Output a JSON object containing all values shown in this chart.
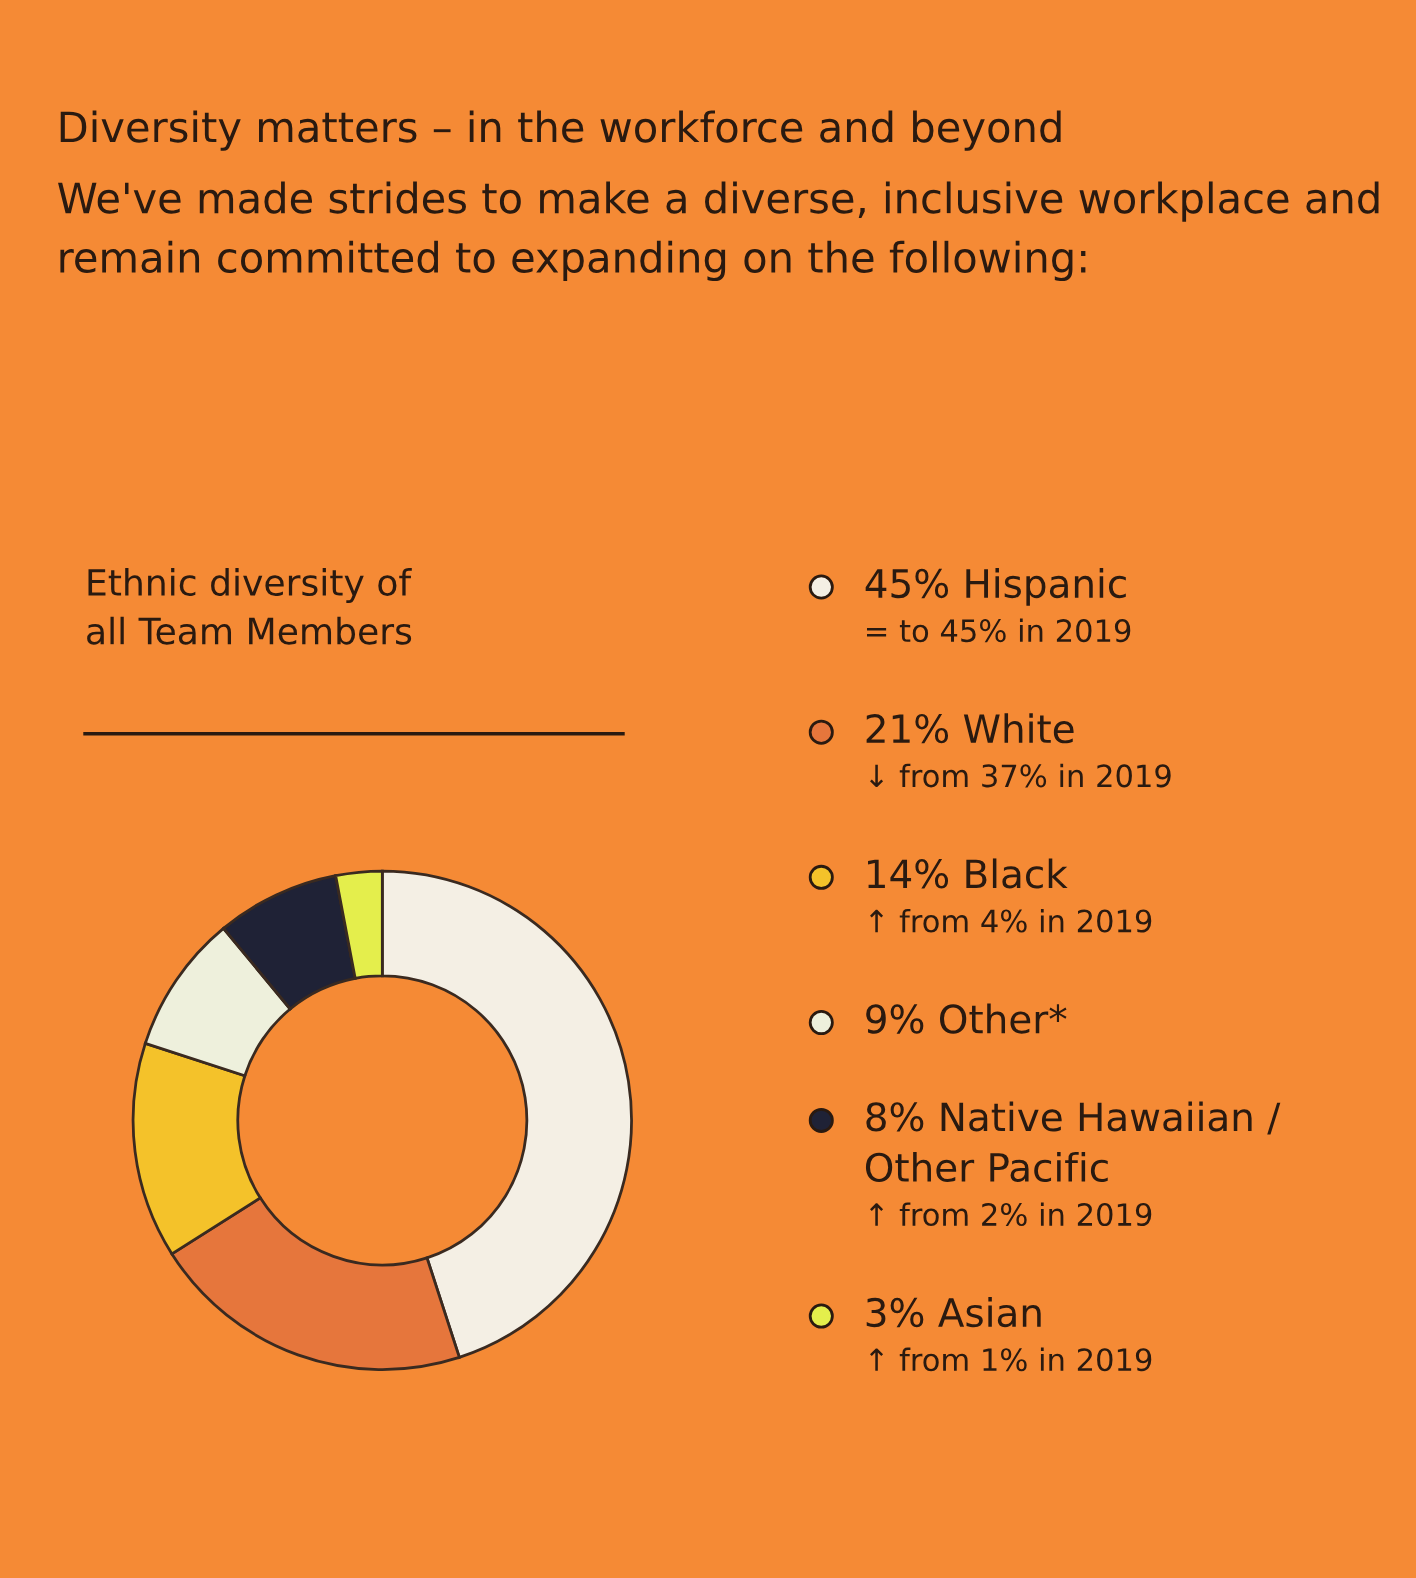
{
  "chart_data": {
    "type": "donut",
    "title": "Diversity matters – in the workforce and beyond",
    "subtitle": "We've made strides to make a diverse, inclusive workplace and remain committed to expanding on the following:",
    "annotations": [
      "Ethnic diversity of\nall Team Members"
    ],
    "categories": [
      "45% Hispanic\n= to 45% in 2019",
      "21% White\n↓ from 37% in 2019",
      "14% Black\n↑ from 4% in 2019",
      "9% Other*",
      "8% Native Hawaiian /\nOther Pacific\n↑ from 2% in 2019",
      "3% Asian\n↑ from 1% in 2019"
    ],
    "values": [
      45,
      21,
      14,
      9,
      8,
      3
    ],
    "colors": [
      "#f4efe4",
      "#e6763c",
      "#f4c22a",
      "#eef0dc",
      "#1f2236",
      "#e4ee4c"
    ],
    "legend": "right"
  }
}
